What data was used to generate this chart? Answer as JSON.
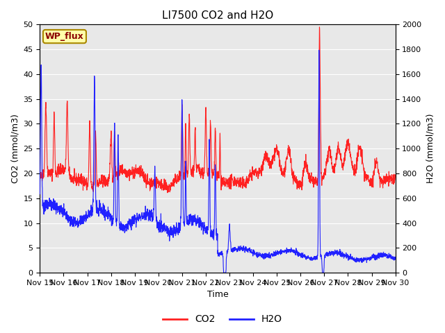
{
  "title": "LI7500 CO2 and H2O",
  "xlabel": "Time",
  "ylabel_left": "CO2 (mmol/m3)",
  "ylabel_right": "H2O (mmol/m3)",
  "ylim_left": [
    0,
    50
  ],
  "ylim_right": [
    0,
    2000
  ],
  "yticks_left": [
    0,
    5,
    10,
    15,
    20,
    25,
    30,
    35,
    40,
    45,
    50
  ],
  "yticks_right": [
    0,
    200,
    400,
    600,
    800,
    1000,
    1200,
    1400,
    1600,
    1800,
    2000
  ],
  "xtick_labels": [
    "Nov 15",
    "Nov 16",
    "Nov 17",
    "Nov 18",
    "Nov 19",
    "Nov 20",
    "Nov 21",
    "Nov 22",
    "Nov 23",
    "Nov 24",
    "Nov 25",
    "Nov 26",
    "Nov 27",
    "Nov 28",
    "Nov 29",
    "Nov 30"
  ],
  "annotation_text": "WP_flux",
  "bg_color": "#e8e8e8",
  "co2_color": "#ff2020",
  "h2o_color": "#2020ff",
  "title_fontsize": 11,
  "axis_fontsize": 9,
  "tick_fontsize": 8,
  "legend_fontsize": 10
}
